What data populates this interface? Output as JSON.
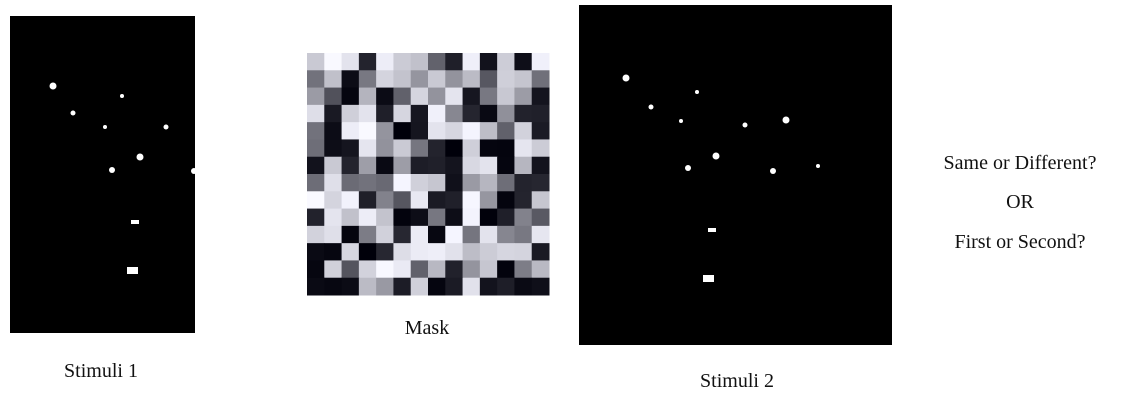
{
  "panels": [
    {
      "label": "Stimuli 1"
    },
    {
      "label": "Mask"
    },
    {
      "label": "Stimuli 2"
    }
  ],
  "question": {
    "line1": "Same or Different?",
    "line2": "OR",
    "line3": "First or Second?"
  }
}
